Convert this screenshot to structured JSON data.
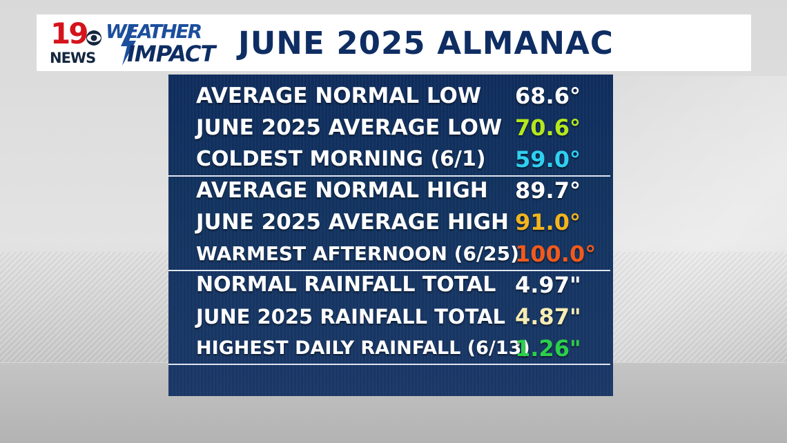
{
  "header": {
    "logo_number": "19",
    "logo_news": "NEWS",
    "logo_weather": "WEATHER",
    "logo_impact": "IMPACT",
    "title": "JUNE 2025 ALMANAC"
  },
  "sections": [
    {
      "rows": [
        {
          "label": "AVERAGE NORMAL LOW",
          "value": "68.6°",
          "color": "#ffffff"
        },
        {
          "label": "JUNE 2025 AVERAGE LOW",
          "value": "70.6°",
          "color": "#b4e81e"
        },
        {
          "label": "COLDEST MORNING (6/1)",
          "value": "59.0°",
          "color": "#2fd0f0"
        }
      ]
    },
    {
      "rows": [
        {
          "label": "AVERAGE NORMAL HIGH",
          "value": "89.7°",
          "color": "#ffffff"
        },
        {
          "label": "JUNE 2025 AVERAGE HIGH",
          "value": "91.0°",
          "color": "#f3b41e"
        },
        {
          "label": "WARMEST AFTERNOON (6/25)",
          "value": "100.0°",
          "color": "#f25a1c"
        }
      ]
    },
    {
      "rows": [
        {
          "label": "NORMAL RAINFALL TOTAL",
          "value": "4.97\"",
          "color": "#ffffff"
        },
        {
          "label": "JUNE 2025 RAINFALL TOTAL",
          "value": "4.87\"",
          "color": "#f7ecb4"
        },
        {
          "label": "HIGHEST DAILY RAINFALL (6/13)",
          "value": "1.26\"",
          "color": "#2ccf4a"
        }
      ]
    }
  ],
  "colors": {
    "brand_red": "#d4141c",
    "brand_navy": "#0e2d63",
    "panel_bg": "#12335f"
  }
}
